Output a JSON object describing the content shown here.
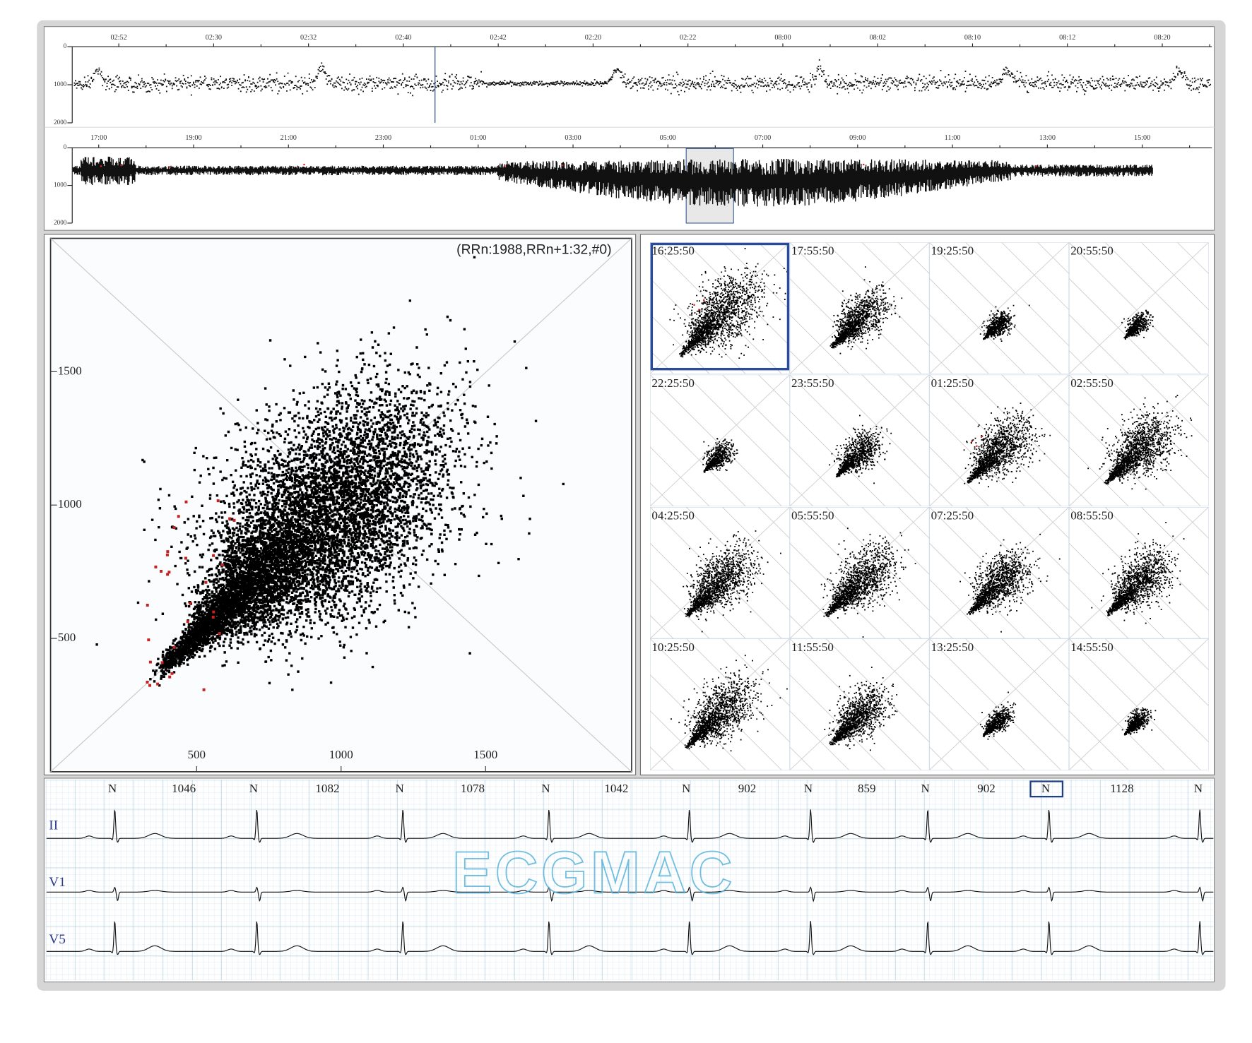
{
  "trend_overview": {
    "time_labels": [
      "02:52",
      "02:30",
      "02:32",
      "02:40",
      "02:42",
      "02:20",
      "02:22",
      "08:00",
      "08:02",
      "08:10",
      "08:12",
      "08:20"
    ],
    "yticks": [
      0,
      1000,
      2000
    ],
    "ylim": [
      0,
      2000
    ]
  },
  "trend_full": {
    "time_labels": [
      "17:00",
      "19:00",
      "21:00",
      "23:00",
      "01:00",
      "03:00",
      "05:00",
      "07:00",
      "09:00",
      "11:00",
      "13:00",
      "15:00"
    ],
    "yticks": [
      0,
      1000,
      2000
    ],
    "ylim": [
      0,
      2000
    ]
  },
  "scatter": {
    "readout": "(RRn:1988,RRn+1:32,#0)",
    "xticks": [
      500,
      1000,
      1500
    ],
    "yticks": [
      500,
      1000,
      1500
    ],
    "xlim": [
      0,
      2000
    ],
    "ylim": [
      0,
      2000
    ]
  },
  "thumbnails": [
    "16:25:50",
    "17:55:50",
    "19:25:50",
    "20:55:50",
    "22:25:50",
    "23:55:50",
    "01:25:50",
    "02:55:50",
    "04:25:50",
    "05:55:50",
    "07:25:50",
    "08:55:50",
    "10:25:50",
    "11:55:50",
    "13:25:50",
    "14:55:50"
  ],
  "ecg": {
    "beat_labels": [
      "N",
      "N",
      "N",
      "N",
      "N",
      "N",
      "N",
      "N",
      "N"
    ],
    "rr_intervals": [
      1046,
      1082,
      1078,
      1042,
      902,
      859,
      902,
      1128
    ],
    "leads": [
      "II",
      "V1",
      "V5"
    ],
    "watermark": "ECGMAC"
  }
}
